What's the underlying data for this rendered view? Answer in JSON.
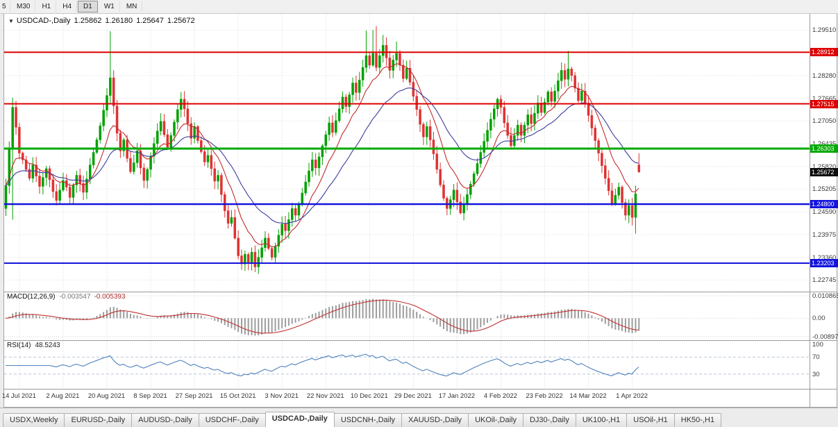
{
  "icons": {
    "chart_marker": "▼"
  },
  "toolbar": {
    "buttons": [
      "5",
      "M30",
      "H1",
      "H4",
      "D1",
      "W1",
      "MN"
    ],
    "active": "D1"
  },
  "chart": {
    "title": "USDCAD-,Daily",
    "ohlc": {
      "open": "1.25862",
      "high": "1.26180",
      "low": "1.25647",
      "close": "1.25672"
    },
    "current_price": 1.25672
  },
  "price_axis": {
    "ticks": [
      1.2951,
      1.2828,
      1.27665,
      1.2705,
      1.26435,
      1.2582,
      1.25205,
      1.2459,
      1.23975,
      1.2336,
      1.22745
    ]
  },
  "x_axis": {
    "labels": [
      {
        "i": 4,
        "t": "14 Jul 2021"
      },
      {
        "i": 17,
        "t": "2 Aug 2021"
      },
      {
        "i": 30,
        "t": "20 Aug 2021"
      },
      {
        "i": 43,
        "t": "8 Sep 2021"
      },
      {
        "i": 56,
        "t": "27 Sep 2021"
      },
      {
        "i": 69,
        "t": "15 Oct 2021"
      },
      {
        "i": 82,
        "t": "3 Nov 2021"
      },
      {
        "i": 95,
        "t": "22 Nov 2021"
      },
      {
        "i": 108,
        "t": "10 Dec 2021"
      },
      {
        "i": 121,
        "t": "29 Dec 2021"
      },
      {
        "i": 134,
        "t": "17 Jan 2022"
      },
      {
        "i": 147,
        "t": "4 Feb 2022"
      },
      {
        "i": 160,
        "t": "23 Feb 2022"
      },
      {
        "i": 173,
        "t": "14 Mar 2022"
      },
      {
        "i": 186,
        "t": "1 Apr 2022"
      }
    ]
  },
  "indicator_macd": {
    "title": "MACD(12,26,9)",
    "main_value": "-0.003547",
    "signal_value": "-0.005393",
    "axis_ticks": [
      "0.010865",
      "0.00",
      "-0.00897"
    ],
    "axis_values": [
      0.010865,
      0,
      -0.00897
    ]
  },
  "indicator_rsi": {
    "title": "RSI(14)",
    "value": "48.5243",
    "axis_ticks": [
      "100",
      "70",
      "30"
    ],
    "axis_values": [
      100,
      70,
      30
    ],
    "levels": [
      70,
      30
    ]
  },
  "tabs": {
    "items": [
      "USDX,Weekly",
      "EURUSD-,Daily",
      "AUDUSD-,Daily",
      "USDCHF-,Daily",
      "USDCAD-,Daily",
      "USDCNH-,Daily",
      "XAUUSD-,Daily",
      "UKOil-,Daily",
      "DJ30-,Daily",
      "UK100-,H1",
      "USOil-,H1",
      "HK50-,H1"
    ],
    "active": "USDCAD-,Daily"
  },
  "chart_data": {
    "type": "candlestick",
    "symbol": "USDCAD",
    "timeframe": "Daily",
    "ylim": [
      1.2245,
      1.2995
    ],
    "first_open": 1.2468,
    "closes": [
      1.253,
      1.2628,
      1.2742,
      1.2688,
      1.2618,
      1.26,
      1.2574,
      1.255,
      1.2586,
      1.2556,
      1.2528,
      1.2552,
      1.2576,
      1.2546,
      1.2514,
      1.249,
      1.2518,
      1.2544,
      1.2526,
      1.2498,
      1.2532,
      1.2558,
      1.2536,
      1.2512,
      1.2548,
      1.2586,
      1.262,
      1.2654,
      1.2692,
      1.2734,
      1.2774,
      1.2822,
      1.2746,
      1.2672,
      1.2624,
      1.2654,
      1.2604,
      1.2568,
      1.2592,
      1.2624,
      1.2578,
      1.2544,
      1.2574,
      1.261,
      1.2644,
      1.2678,
      1.2704,
      1.2668,
      1.2634,
      1.2666,
      1.2702,
      1.2736,
      1.2764,
      1.2738,
      1.2698,
      1.2658,
      1.269,
      1.2652,
      1.2622,
      1.2594,
      1.2612,
      1.2576,
      1.2542,
      1.2558,
      1.2506,
      1.2462,
      1.2428,
      1.2444,
      1.2388,
      1.234,
      1.2318,
      1.2344,
      1.2322,
      1.235,
      1.231,
      1.2336,
      1.2362,
      1.2388,
      1.236,
      1.2336,
      1.2366,
      1.2396,
      1.2426,
      1.2408,
      1.2438,
      1.2468,
      1.245,
      1.248,
      1.251,
      1.254,
      1.257,
      1.26,
      1.2578,
      1.2608,
      1.2638,
      1.2668,
      1.27,
      1.2674,
      1.2706,
      1.2738,
      1.277,
      1.2744,
      1.2776,
      1.2808,
      1.2782,
      1.2816,
      1.285,
      1.2882,
      1.2856,
      1.2888,
      1.285,
      1.2882,
      1.291,
      1.2876,
      1.2842,
      1.287,
      1.2888,
      1.2856,
      1.282,
      1.2848,
      1.281,
      1.2772,
      1.2736,
      1.2696,
      1.2662,
      1.269,
      1.2654,
      1.2616,
      1.2574,
      1.2532,
      1.2496,
      1.2468,
      1.2492,
      1.2518,
      1.2486,
      1.2456,
      1.248,
      1.2506,
      1.2534,
      1.2562,
      1.259,
      1.262,
      1.265,
      1.268,
      1.271,
      1.2738,
      1.2764,
      1.2742,
      1.27,
      1.2666,
      1.2638,
      1.2666,
      1.2694,
      1.2666,
      1.2694,
      1.2722,
      1.2698,
      1.2726,
      1.2754,
      1.2728,
      1.2756,
      1.2784,
      1.2758,
      1.2786,
      1.2814,
      1.2842,
      1.2818,
      1.2846,
      1.2828,
      1.2794,
      1.276,
      1.2786,
      1.2754,
      1.272,
      1.2686,
      1.2652,
      1.2618,
      1.2584,
      1.255,
      1.2516,
      1.2482,
      1.2504,
      1.2526,
      1.2484,
      1.245,
      1.2476,
      1.2444,
      1.2508,
      1.25672
    ],
    "overrides": {
      "2": {
        "h": 1.2768,
        "l": 1.2438
      },
      "31": {
        "h": 1.2948
      },
      "70": {
        "l": 1.2302
      },
      "74": {
        "l": 1.2296
      },
      "107": {
        "h": 1.295
      },
      "109": {
        "h": 1.2952
      },
      "110": {
        "h": 1.2962
      },
      "112": {
        "h": 1.2938
      },
      "116": {
        "h": 1.292
      },
      "131": {
        "l": 1.245
      },
      "135": {
        "l": 1.2452
      },
      "167": {
        "h": 1.2895
      },
      "184": {
        "l": 1.2436
      },
      "187": {
        "l": 1.24
      }
    },
    "last_candle": {
      "o": 1.25862,
      "h": 1.2618,
      "l": 1.25647,
      "c": 1.25672
    },
    "colors": {
      "up": "#00A000",
      "down": "#DE3232"
    },
    "moving_averages": [
      {
        "period": 10,
        "color": "#C42B2B"
      },
      {
        "period": 25,
        "color": "#3C3C9E"
      }
    ],
    "macd": {
      "fast": 12,
      "slow": 26,
      "signal": 9,
      "histogram_color": "#9C9C9C",
      "signal_color": "#C03030"
    },
    "rsi_period": 14,
    "rsi_color": "#4F81BD",
    "hlines": [
      {
        "value": 1.28912,
        "color": "#DD0000",
        "width": 2
      },
      {
        "value": 1.27515,
        "color": "#DD0000",
        "width": 2
      },
      {
        "value": 1.26303,
        "color": "#00AA00",
        "width": 3
      },
      {
        "value": 1.248,
        "color": "#1414DD",
        "width": 2.5
      },
      {
        "value": 1.23203,
        "color": "#1414DD",
        "width": 2
      }
    ]
  }
}
